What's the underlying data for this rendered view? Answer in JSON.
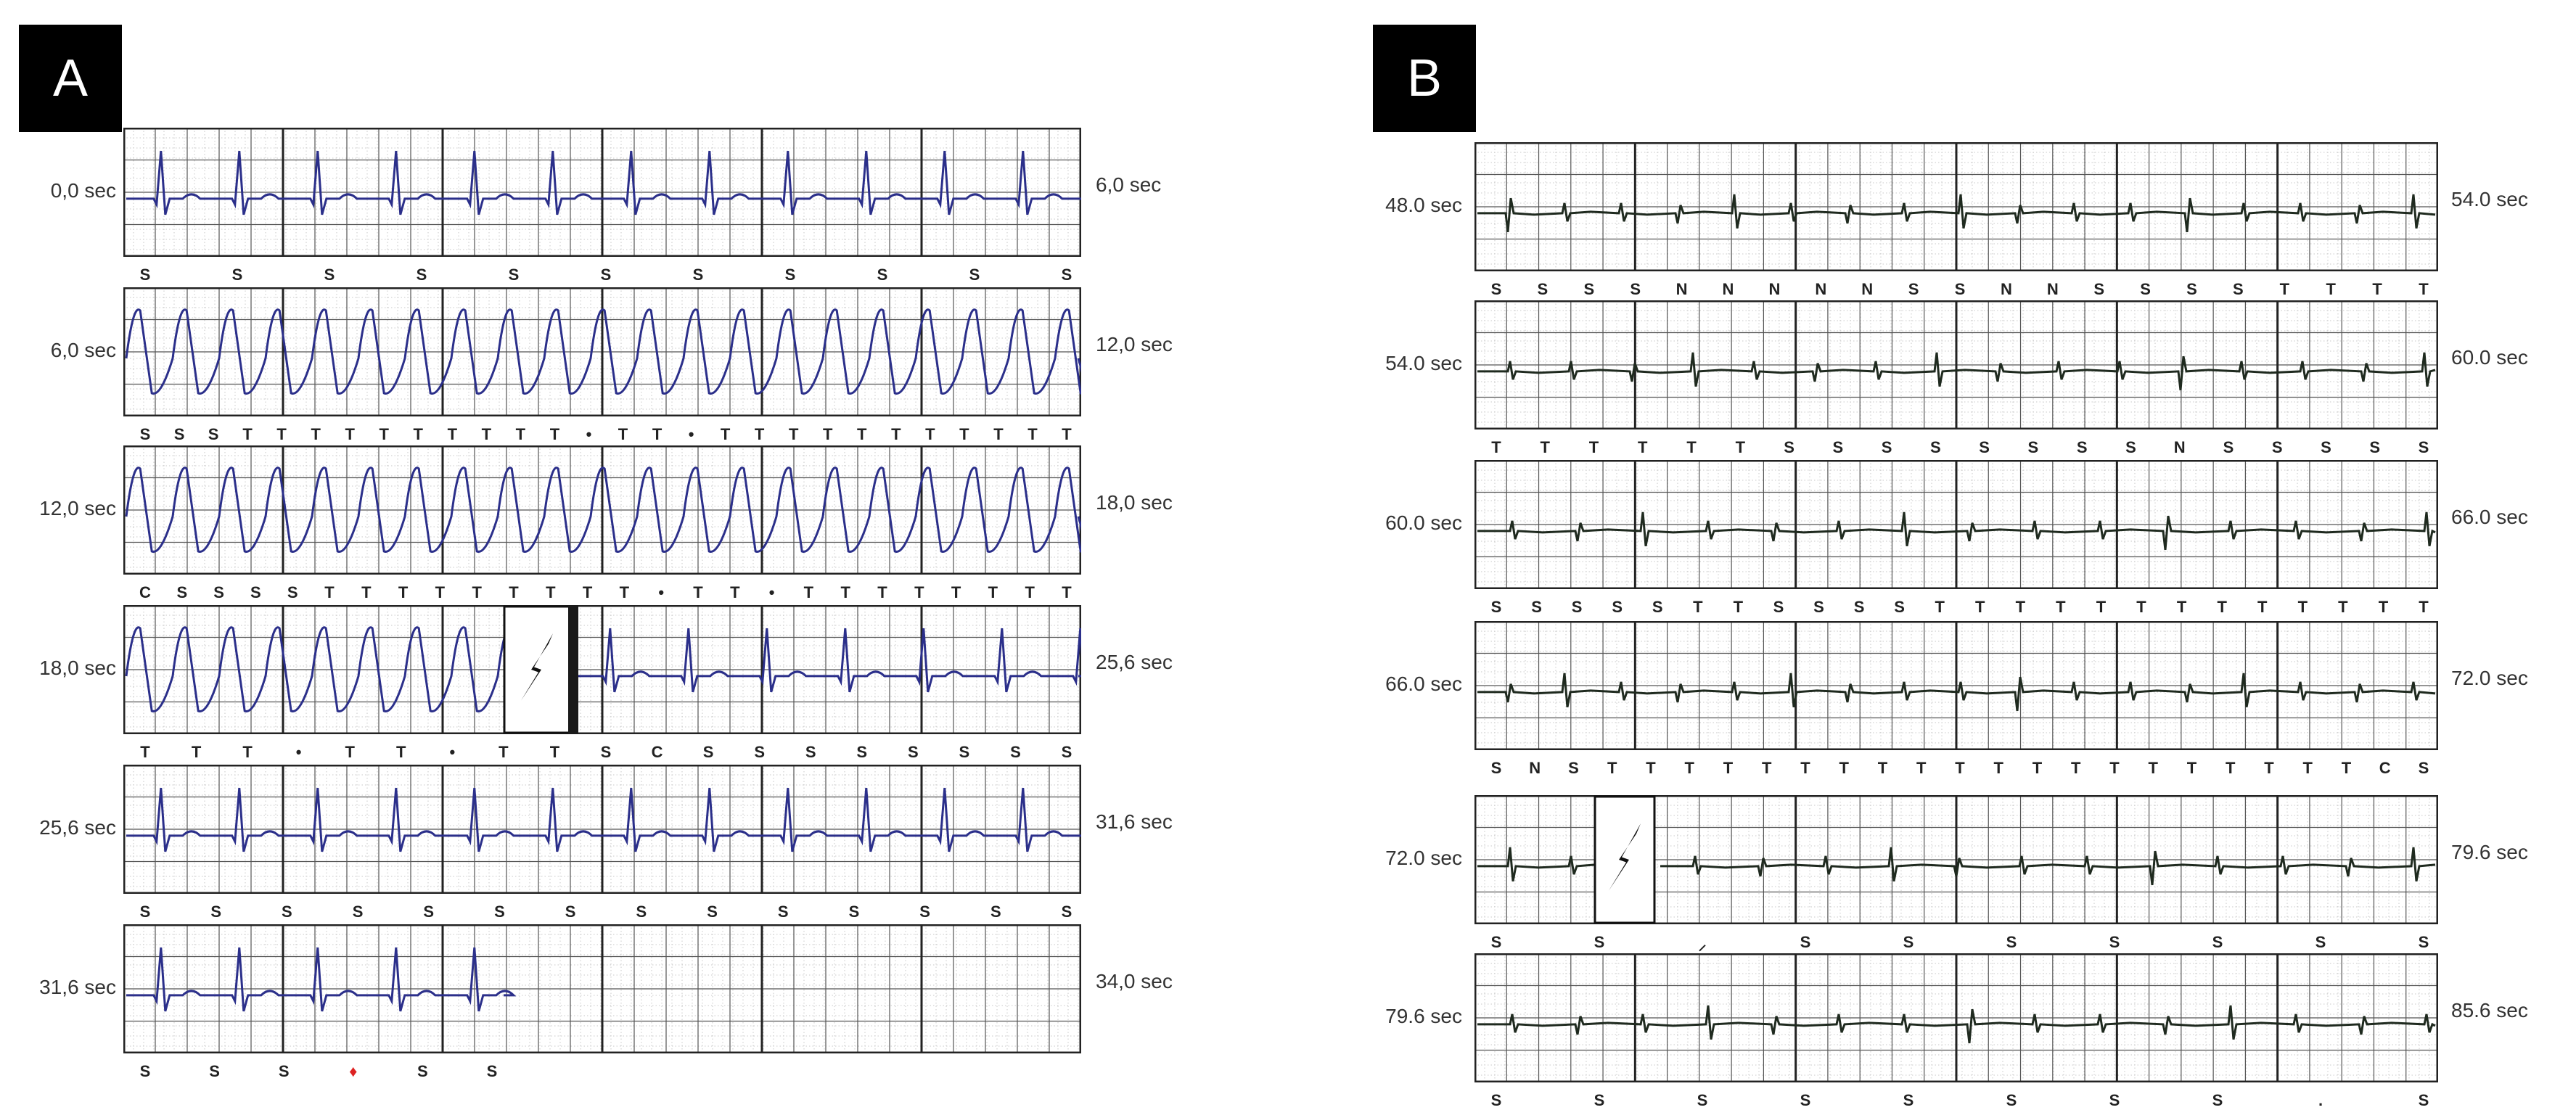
{
  "panels": [
    {
      "label": "A",
      "trace_color": "#2b2f8a",
      "rows": [
        {
          "left": "0,0 sec",
          "right": "6,0 sec",
          "rhythm": "sinus",
          "shock": false,
          "fill": 1,
          "annotations": [
            "S",
            "S",
            "S",
            "S",
            "S",
            "S",
            "S",
            "S",
            "S",
            "S",
            "S"
          ]
        },
        {
          "left": "6,0 sec",
          "right": "12,0 sec",
          "rhythm": "vt",
          "shock": false,
          "fill": 1,
          "annotations": [
            "S",
            "S",
            "S",
            "T",
            "T",
            "T",
            "T",
            "T",
            "T",
            "T",
            "T",
            "T",
            "T",
            "•",
            "T",
            "T",
            "•",
            "T",
            "T",
            "T",
            "T",
            "T",
            "T",
            "T",
            "T",
            "T",
            "T",
            "T"
          ]
        },
        {
          "left": "12,0 sec",
          "right": "18,0 sec",
          "rhythm": "vt",
          "shock": false,
          "fill": 1,
          "annotations": [
            "C",
            "S",
            "S",
            "S",
            "S",
            "T",
            "T",
            "T",
            "T",
            "T",
            "T",
            "T",
            "T",
            "T",
            "•",
            "T",
            "T",
            "•",
            "T",
            "T",
            "T",
            "T",
            "T",
            "T",
            "T",
            "T"
          ]
        },
        {
          "left": "18,0 sec",
          "right": "25,6 sec",
          "rhythm": "vt-then-sinus",
          "shock": true,
          "fill": 1,
          "annotations": [
            "T",
            "T",
            "T",
            "•",
            "T",
            "T",
            "•",
            "T",
            "T",
            "S",
            "C",
            "S",
            "S",
            "S",
            "S",
            "S",
            "S",
            "S",
            "S"
          ]
        },
        {
          "left": "25,6 sec",
          "right": "31,6 sec",
          "rhythm": "sinus",
          "shock": false,
          "fill": 1,
          "annotations": [
            "S",
            "S",
            "S",
            "S",
            "S",
            "S",
            "S",
            "S",
            "S",
            "S",
            "S",
            "S",
            "S",
            "S"
          ]
        },
        {
          "left": "31,6 sec",
          "right": "34,0 sec",
          "rhythm": "sinus",
          "shock": false,
          "fill": 0.4,
          "annotations": [
            "S",
            "S",
            "S",
            "♦",
            "S",
            "S"
          ]
        }
      ]
    },
    {
      "label": "B",
      "trace_color": "#1f2a1f",
      "rows": [
        {
          "left": "48.0 sec",
          "right": "54.0 sec",
          "rhythm": "low",
          "shock": false,
          "fill": 1,
          "annotations": [
            "S",
            "S",
            "S",
            "S",
            "N",
            "N",
            "N",
            "N",
            "N",
            "S",
            "S",
            "N",
            "N",
            "S",
            "S",
            "S",
            "S",
            "T",
            "T",
            "T",
            "T"
          ]
        },
        {
          "left": "54.0 sec",
          "right": "60.0 sec",
          "rhythm": "low",
          "shock": false,
          "fill": 1,
          "annotations": [
            "T",
            "T",
            "T",
            "T",
            "T",
            "T",
            "S",
            "S",
            "S",
            "S",
            "S",
            "S",
            "S",
            "S",
            "N",
            "S",
            "S",
            "S",
            "S",
            "S"
          ]
        },
        {
          "left": "60.0 sec",
          "right": "66.0 sec",
          "rhythm": "low",
          "shock": false,
          "fill": 1,
          "annotations": [
            "S",
            "S",
            "S",
            "S",
            "S",
            "T",
            "T",
            "S",
            "S",
            "S",
            "S",
            "T",
            "T",
            "T",
            "T",
            "T",
            "T",
            "T",
            "T",
            "T",
            "T",
            "T",
            "T",
            "T"
          ]
        },
        {
          "left": "66.0 sec",
          "right": "72.0 sec",
          "rhythm": "low",
          "shock": false,
          "fill": 1,
          "annotations": [
            "S",
            "N",
            "S",
            "T",
            "T",
            "T",
            "T",
            "T",
            "T",
            "T",
            "T",
            "T",
            "T",
            "T",
            "T",
            "T",
            "T",
            "T",
            "T",
            "T",
            "T",
            "T",
            "T",
            "C",
            "S"
          ]
        },
        {
          "left": "72.0 sec",
          "right": "79.6 sec",
          "rhythm": "low",
          "shock": true,
          "fill": 1,
          "annotations": [
            "S",
            "S",
            "⸝",
            "S",
            "S",
            "S",
            "S",
            "S",
            "S",
            "S"
          ]
        },
        {
          "left": "79.6 sec",
          "right": "85.6 sec",
          "rhythm": "low",
          "shock": false,
          "fill": 1,
          "annotations": [
            "S",
            "S",
            "S",
            "S",
            "S",
            "S",
            "S",
            "S",
            ".",
            "S"
          ]
        }
      ]
    }
  ]
}
